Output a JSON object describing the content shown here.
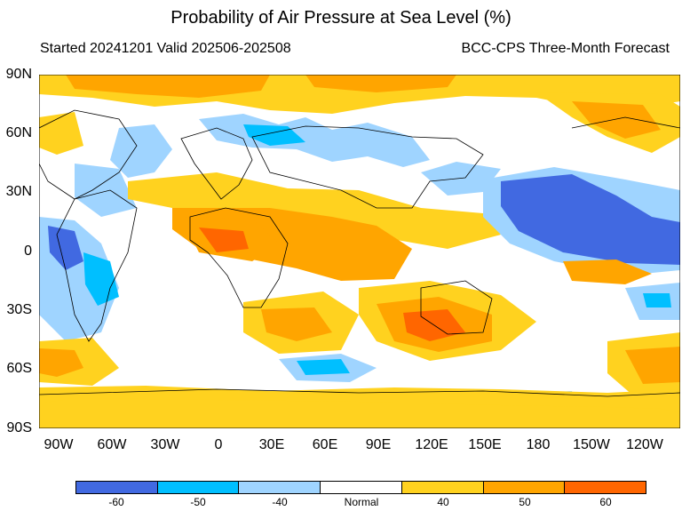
{
  "title": "Probability of Air Pressure at Sea Level (%)",
  "subtitle_left": "Started 20241201  Valid 202506-202508",
  "subtitle_right": "BCC-CPS Three-Month Forecast",
  "lat_labels": [
    "90N",
    "60N",
    "30N",
    "0",
    "30S",
    "60S",
    "90S"
  ],
  "lon_labels": [
    "90W",
    "60W",
    "30W",
    "0",
    "30E",
    "60E",
    "90E",
    "120E",
    "150E",
    "180",
    "150W",
    "120W"
  ],
  "legend": {
    "colors": [
      "#4169e1",
      "#00bfff",
      "#9fd4ff",
      "#ffffff",
      "#ffd21f",
      "#ffa500",
      "#ff6600"
    ],
    "labels": [
      "-60",
      "-50",
      "-40",
      "Normal",
      "40",
      "50",
      "60"
    ]
  }
}
